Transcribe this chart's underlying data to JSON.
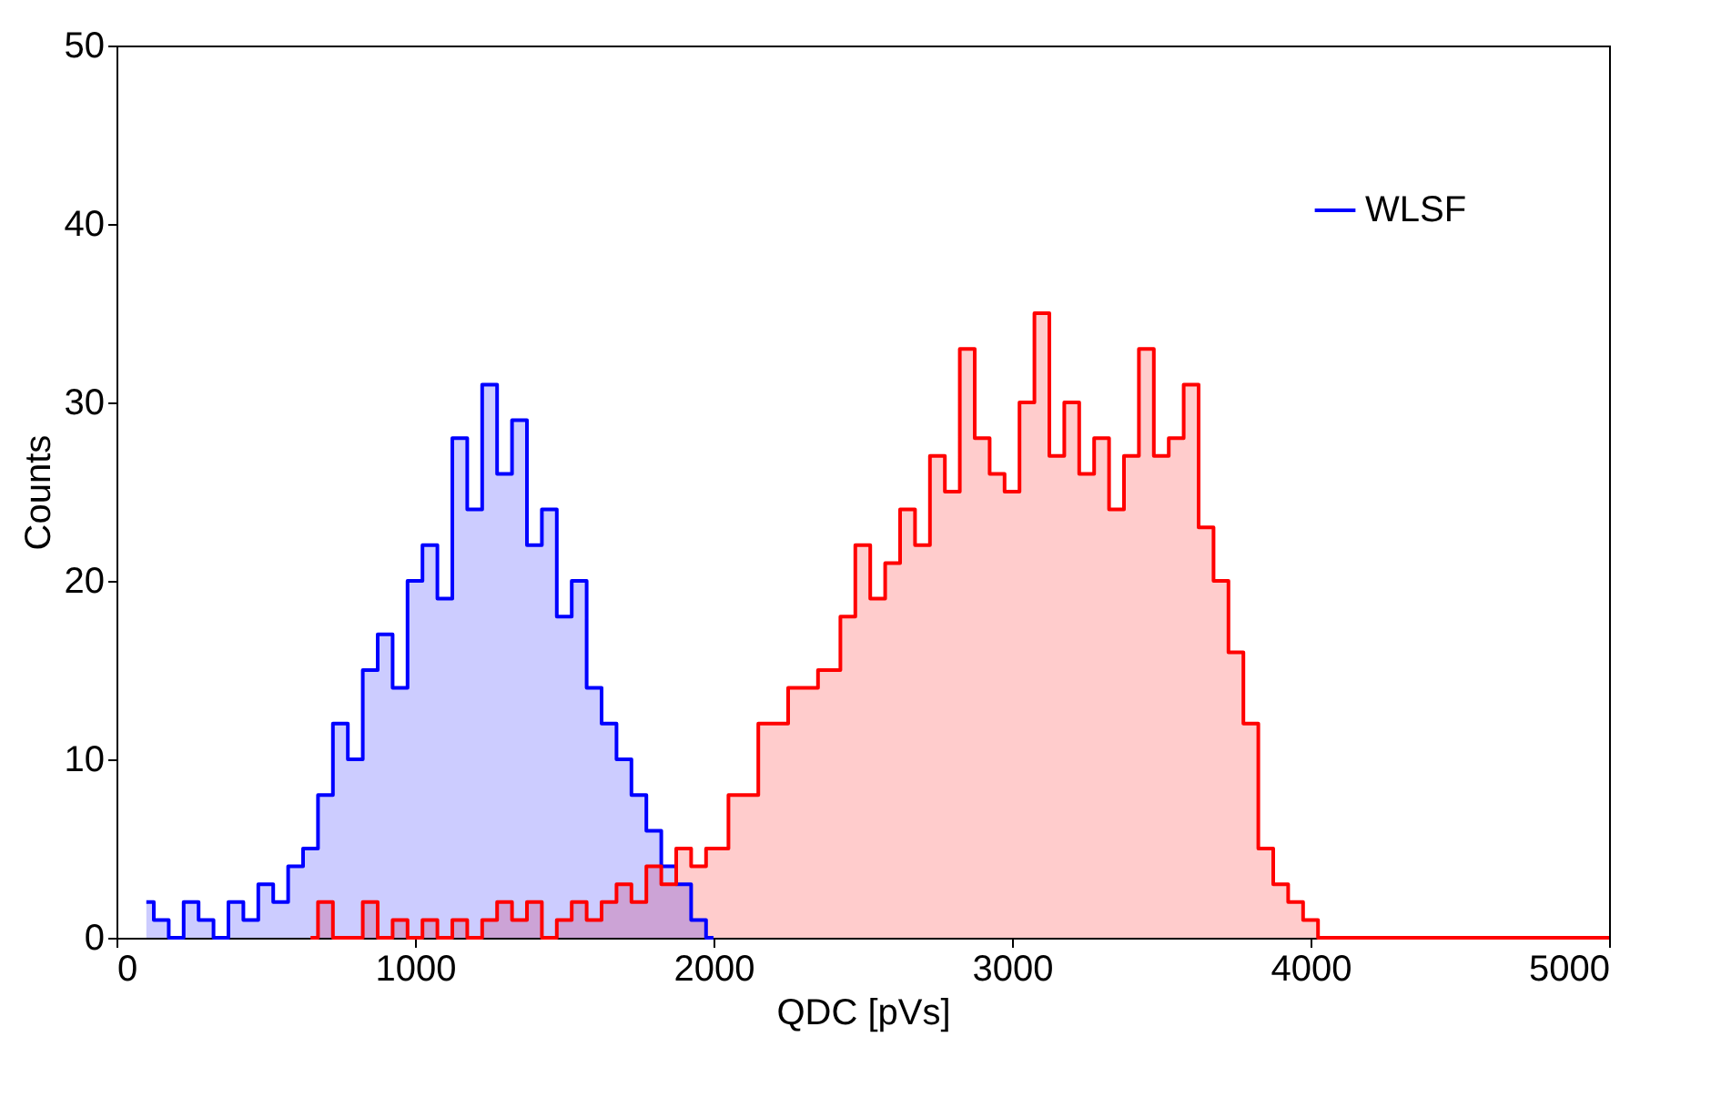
{
  "chart_data": {
    "type": "step",
    "xlabel": "QDC [pVs]",
    "ylabel": "Counts",
    "xlim": [
      0,
      5000
    ],
    "xticks": [
      0,
      1000,
      2000,
      3000,
      4000,
      5000
    ],
    "ylim": [
      0,
      50
    ],
    "yticks": [
      0,
      10,
      20,
      30,
      40,
      50
    ],
    "legend": "top right",
    "series": [
      {
        "color": "#ff0000",
        "x": [
          650,
          700,
          750,
          800,
          850,
          900,
          950,
          1000,
          1050,
          1100,
          1150,
          1200,
          1250,
          1300,
          1350,
          1400,
          1450,
          1500,
          1550,
          1600,
          1650,
          1700,
          1750,
          1800,
          1850,
          1900,
          1950,
          2000,
          2100,
          2200,
          2300,
          2400,
          2450,
          2500,
          2550,
          2600,
          2650,
          2700,
          2750,
          2800,
          2850,
          2900,
          2950,
          3000,
          3050,
          3100,
          3150,
          3200,
          3250,
          3300,
          3350,
          3400,
          3450,
          3500,
          3550,
          3600,
          3650,
          3700,
          3750,
          3800,
          3850,
          3900,
          3950,
          4000,
          4050,
          5000
        ],
        "values": [
          0,
          2,
          0,
          0,
          2,
          0,
          1,
          0,
          1,
          0,
          1,
          0,
          1,
          2,
          1,
          2,
          0,
          1,
          2,
          1,
          2,
          3,
          2,
          4,
          3,
          5,
          4,
          5,
          8,
          12,
          14,
          15,
          18,
          22,
          19,
          21,
          24,
          22,
          27,
          25,
          33,
          28,
          26,
          25,
          30,
          35,
          27,
          30,
          26,
          28,
          24,
          27,
          33,
          27,
          28,
          31,
          23,
          20,
          16,
          12,
          5,
          3,
          2,
          1,
          0,
          0
        ]
      },
      {
        "name": "WLSF",
        "color": "#0000ff",
        "x": [
          100,
          150,
          200,
          250,
          300,
          350,
          400,
          450,
          500,
          550,
          600,
          650,
          700,
          750,
          800,
          850,
          900,
          950,
          1000,
          1050,
          1100,
          1150,
          1200,
          1250,
          1300,
          1350,
          1400,
          1450,
          1500,
          1550,
          1600,
          1650,
          1700,
          1750,
          1800,
          1850,
          1900,
          1950,
          2000
        ],
        "values": [
          2,
          1,
          0,
          2,
          1,
          0,
          2,
          1,
          3,
          2,
          4,
          5,
          8,
          12,
          10,
          15,
          17,
          14,
          20,
          22,
          19,
          28,
          24,
          31,
          26,
          29,
          22,
          24,
          18,
          20,
          14,
          12,
          10,
          8,
          6,
          4,
          3,
          1,
          0
        ]
      }
    ]
  }
}
